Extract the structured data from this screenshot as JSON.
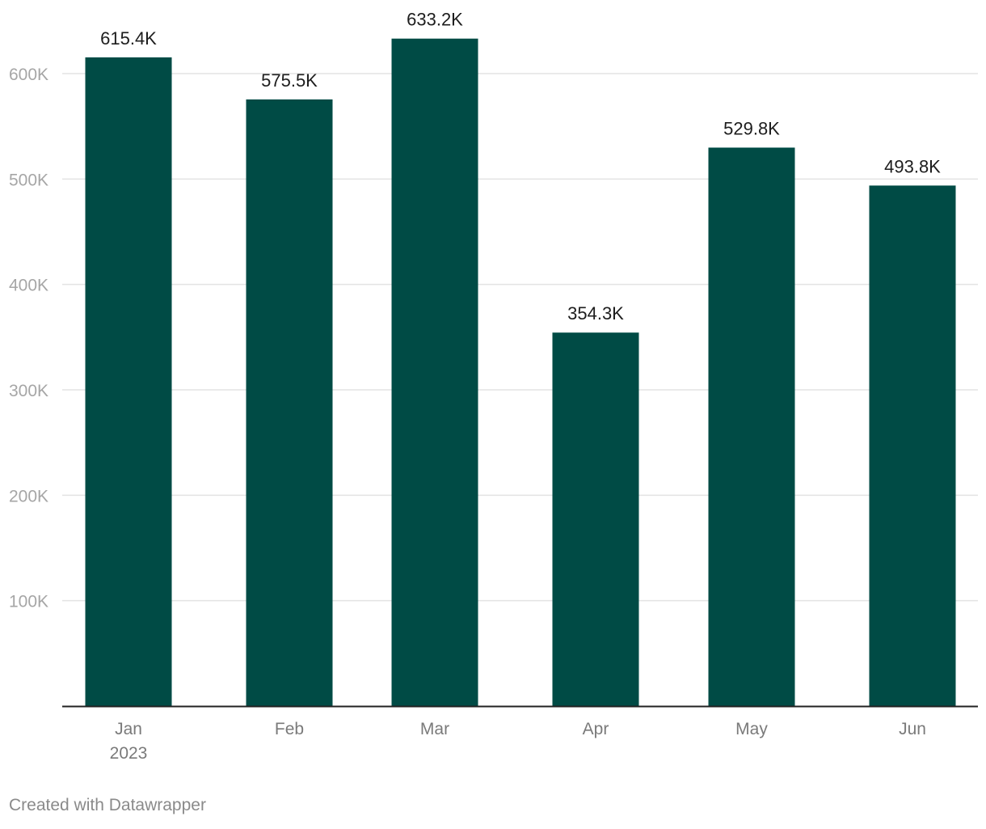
{
  "chart_data": {
    "type": "bar",
    "categories": [
      "Jan",
      "Feb",
      "Mar",
      "Apr",
      "May",
      "Jun"
    ],
    "category_sublabels": [
      "2023",
      "",
      "",
      "",
      "",
      ""
    ],
    "values": [
      615400,
      575500,
      633200,
      354300,
      529800,
      493800
    ],
    "value_labels": [
      "615.4K",
      "575.5K",
      "633.2K",
      "354.3K",
      "529.8K",
      "493.8K"
    ],
    "y_ticks": [
      100000,
      200000,
      300000,
      400000,
      500000,
      600000
    ],
    "y_tick_labels": [
      "100K",
      "200K",
      "300K",
      "400K",
      "500K",
      "600K"
    ],
    "ylim": [
      0,
      600000
    ],
    "grid": true,
    "legend": "none",
    "title": "",
    "xlabel": "",
    "ylabel": ""
  },
  "colors": {
    "bar": "#004b45",
    "grid": "#e3e3e3",
    "axis": "#222222",
    "tick_label": "#a6a6a6",
    "category_label": "#7a7a7a",
    "value_label": "#1d1d1d"
  },
  "footer": {
    "credit": "Created with Datawrapper"
  }
}
